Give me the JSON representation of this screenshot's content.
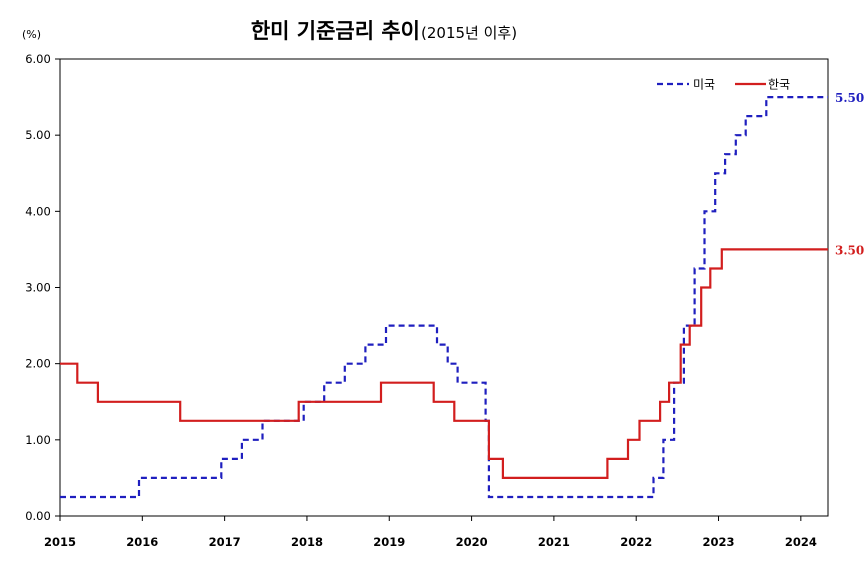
{
  "chart_data": {
    "type": "line",
    "title": "한미 기준금리 추이",
    "subtitle": "(2015년 이후)",
    "unit_label": "(%)",
    "xlabel": "",
    "ylabel": "",
    "xlim": [
      2015.0,
      2024.33
    ],
    "ylim": [
      0,
      6
    ],
    "x_ticks": [
      2015,
      2016,
      2017,
      2018,
      2019,
      2020,
      2021,
      2022,
      2023,
      2024
    ],
    "y_ticks": [
      "0.00",
      "1.00",
      "2.00",
      "3.00",
      "4.00",
      "5.00",
      "6.00"
    ],
    "step": true,
    "grid": false,
    "legend_position": "top-right",
    "series": [
      {
        "name": "미국",
        "color": "#1f1fbf",
        "dash": true,
        "end_label": "5.50",
        "points": [
          [
            2015.0,
            0.25
          ],
          [
            2015.96,
            0.5
          ],
          [
            2016.96,
            0.75
          ],
          [
            2017.21,
            1.0
          ],
          [
            2017.46,
            1.25
          ],
          [
            2017.96,
            1.5
          ],
          [
            2018.21,
            1.75
          ],
          [
            2018.46,
            2.0
          ],
          [
            2018.71,
            2.25
          ],
          [
            2018.96,
            2.5
          ],
          [
            2019.58,
            2.25
          ],
          [
            2019.71,
            2.0
          ],
          [
            2019.83,
            1.75
          ],
          [
            2020.17,
            1.25
          ],
          [
            2020.21,
            0.25
          ],
          [
            2022.21,
            0.5
          ],
          [
            2022.33,
            1.0
          ],
          [
            2022.46,
            1.75
          ],
          [
            2022.58,
            2.5
          ],
          [
            2022.71,
            3.25
          ],
          [
            2022.83,
            4.0
          ],
          [
            2022.96,
            4.5
          ],
          [
            2023.08,
            4.75
          ],
          [
            2023.21,
            5.0
          ],
          [
            2023.33,
            5.25
          ],
          [
            2023.58,
            5.5
          ],
          [
            2024.33,
            5.5
          ]
        ]
      },
      {
        "name": "한국",
        "color": "#d21e1e",
        "dash": false,
        "end_label": "3.50",
        "points": [
          [
            2015.0,
            2.0
          ],
          [
            2015.21,
            1.75
          ],
          [
            2015.46,
            1.5
          ],
          [
            2016.46,
            1.25
          ],
          [
            2017.9,
            1.5
          ],
          [
            2018.9,
            1.75
          ],
          [
            2019.54,
            1.5
          ],
          [
            2019.79,
            1.25
          ],
          [
            2020.21,
            0.75
          ],
          [
            2020.38,
            0.5
          ],
          [
            2021.65,
            0.75
          ],
          [
            2021.9,
            1.0
          ],
          [
            2022.04,
            1.25
          ],
          [
            2022.29,
            1.5
          ],
          [
            2022.4,
            1.75
          ],
          [
            2022.54,
            2.25
          ],
          [
            2022.65,
            2.5
          ],
          [
            2022.79,
            3.0
          ],
          [
            2022.9,
            3.25
          ],
          [
            2023.04,
            3.5
          ],
          [
            2024.33,
            3.5
          ]
        ]
      }
    ]
  }
}
